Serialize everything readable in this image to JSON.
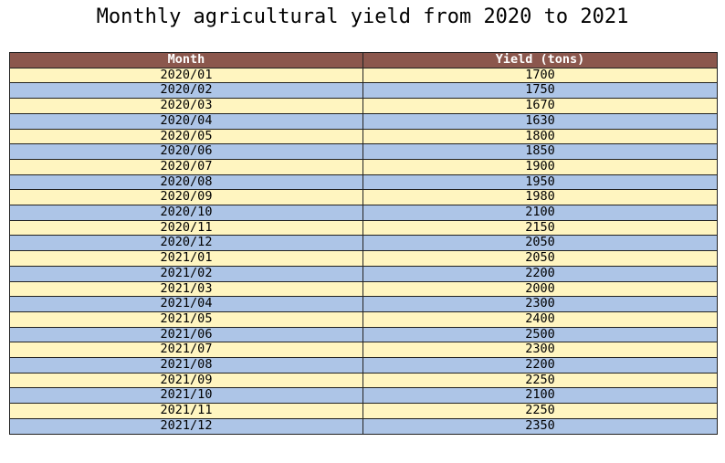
{
  "chart_data": {
    "type": "table",
    "title": "Monthly agricultural yield from 2020 to 2021",
    "columns": [
      "Month",
      "Yield (tons)"
    ],
    "rows": [
      [
        "2020/01",
        "1700"
      ],
      [
        "2020/02",
        "1750"
      ],
      [
        "2020/03",
        "1670"
      ],
      [
        "2020/04",
        "1630"
      ],
      [
        "2020/05",
        "1800"
      ],
      [
        "2020/06",
        "1850"
      ],
      [
        "2020/07",
        "1900"
      ],
      [
        "2020/08",
        "1950"
      ],
      [
        "2020/09",
        "1980"
      ],
      [
        "2020/10",
        "2100"
      ],
      [
        "2020/11",
        "2150"
      ],
      [
        "2020/12",
        "2050"
      ],
      [
        "2021/01",
        "2050"
      ],
      [
        "2021/02",
        "2200"
      ],
      [
        "2021/03",
        "2000"
      ],
      [
        "2021/04",
        "2300"
      ],
      [
        "2021/05",
        "2400"
      ],
      [
        "2021/06",
        "2500"
      ],
      [
        "2021/07",
        "2300"
      ],
      [
        "2021/08",
        "2200"
      ],
      [
        "2021/09",
        "2250"
      ],
      [
        "2021/10",
        "2100"
      ],
      [
        "2021/11",
        "2250"
      ],
      [
        "2021/12",
        "2350"
      ]
    ]
  },
  "colors": {
    "header_bg": "#8b574d",
    "header_text": "#ffffff",
    "row_odd": "#fff5c0",
    "row_even": "#adc5e7",
    "border": "#222222"
  }
}
